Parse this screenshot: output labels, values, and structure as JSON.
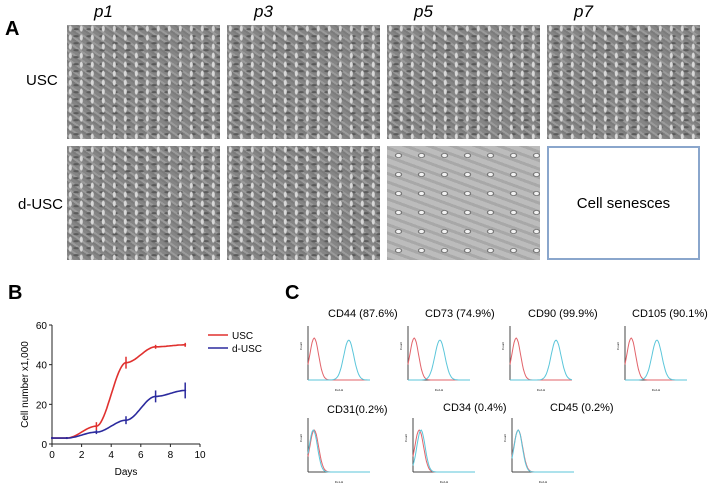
{
  "panelA": {
    "label": "A",
    "columns": [
      "p1",
      "p3",
      "p5",
      "p7"
    ],
    "rows": [
      "USC",
      "d-USC"
    ],
    "senescence_text": "Cell senesces"
  },
  "panelB": {
    "label": "B"
  },
  "panelC": {
    "label": "C",
    "markers": [
      {
        "name": "CD44 (87.6%)",
        "pos_peak": 2.3
      },
      {
        "name": "CD73 (74.9%)",
        "pos_peak": 1.8
      },
      {
        "name": "CD90 (99.9%)",
        "pos_peak": 2.6
      },
      {
        "name": "CD105 (90.1%)",
        "pos_peak": 1.8
      },
      {
        "name": "CD31(0.2%)",
        "pos_peak": 0.3
      },
      {
        "name": "CD34 (0.4%)",
        "pos_peak": 0.45
      },
      {
        "name": "CD45 (0.2%)",
        "pos_peak": 0.35
      }
    ],
    "ylabel": "Count",
    "xlabels": [
      "FL2-H",
      "FL2-H",
      "FL2-H",
      "FL2-H",
      "FL1-H",
      "FL2-H",
      "FL2-H"
    ]
  },
  "chart_data": {
    "type": "line",
    "xlabel": "Days",
    "ylabel": "Cell number x1,000",
    "xlim": [
      0,
      10
    ],
    "ylim": [
      0,
      60
    ],
    "xticks": [
      0,
      2,
      4,
      6,
      8,
      10
    ],
    "yticks": [
      0,
      20,
      40,
      60
    ],
    "legend": "top-right",
    "x": [
      0,
      1,
      3,
      5,
      7,
      9
    ],
    "series": [
      {
        "name": "USC",
        "color": "#e0312f",
        "values": [
          3,
          3,
          9,
          41,
          49,
          50
        ],
        "err": [
          0.5,
          0.5,
          2,
          3,
          1,
          1
        ]
      },
      {
        "name": "d-USC",
        "color": "#2b2a9e",
        "values": [
          3,
          3,
          6,
          12,
          24,
          27
        ],
        "err": [
          0.5,
          0.5,
          1,
          2,
          3,
          4
        ]
      }
    ]
  }
}
